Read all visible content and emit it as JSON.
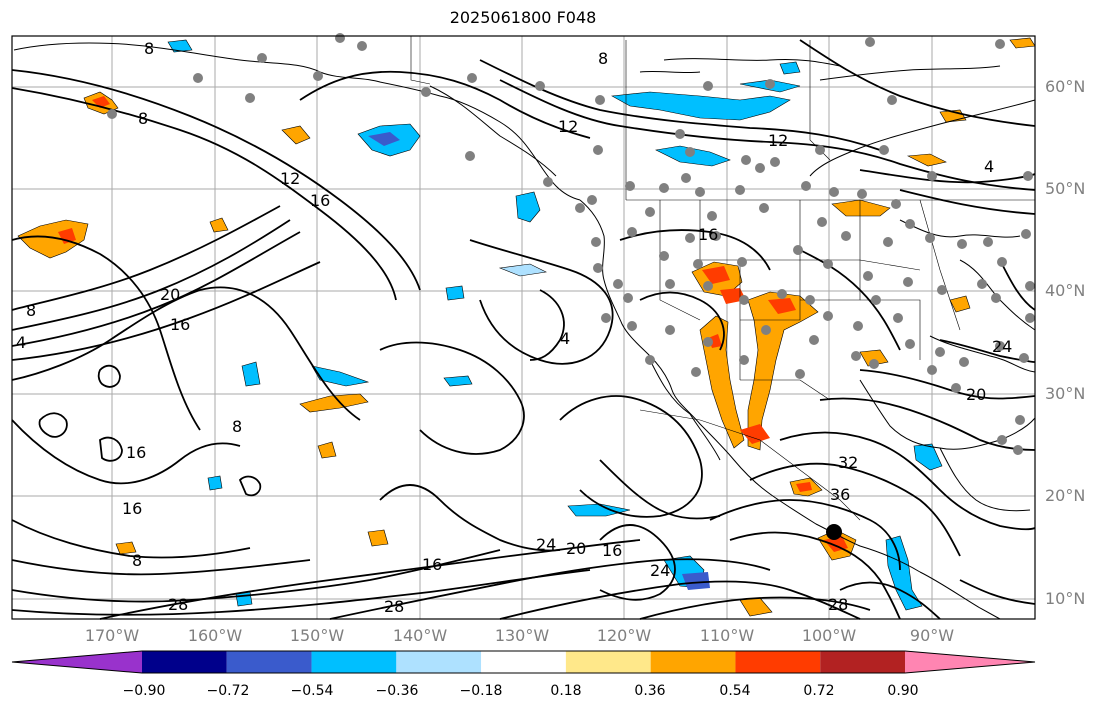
{
  "title": "2025061800 F048",
  "lat_labels": [
    "60°N",
    "50°N",
    "40°N",
    "30°N",
    "20°N",
    "10°N"
  ],
  "lon_labels": [
    "170°W",
    "160°W",
    "150°W",
    "140°W",
    "130°W",
    "120°W",
    "110°W",
    "100°W",
    "90°W"
  ],
  "contour_labels": [
    "8",
    "8",
    "8",
    "12",
    "12",
    "12",
    "4",
    "16",
    "20",
    "16",
    "4",
    "8",
    "16",
    "16",
    "8",
    "16",
    "20",
    "24",
    "16",
    "24",
    "28",
    "28",
    "28",
    "32",
    "36",
    "20",
    "24",
    "8",
    "4",
    "16"
  ],
  "colorbar": {
    "ticks": [
      "−0.90",
      "−0.72",
      "−0.54",
      "−0.36",
      "−0.18",
      "0.18",
      "0.36",
      "0.54",
      "0.72",
      "0.90"
    ],
    "colors": [
      "#9932cc",
      "#00008b",
      "#3a5bcc",
      "#00bfff",
      "#aee1ff",
      "#ffffff",
      "#ffe88a",
      "#ffa500",
      "#ff3c00",
      "#b22222",
      "#ff85b2"
    ]
  },
  "fill_colors": {
    "orange": "#ffa500",
    "red": "#ff3c00",
    "cyan": "#00bfff",
    "lightblue": "#aee1ff",
    "dots": "#808080"
  }
}
